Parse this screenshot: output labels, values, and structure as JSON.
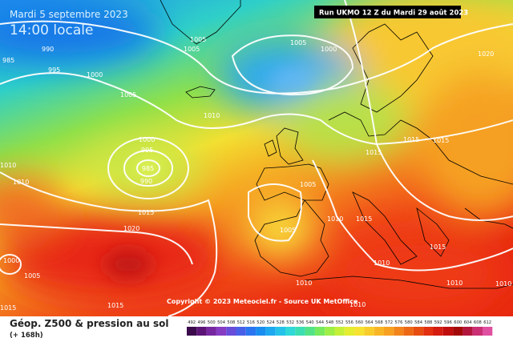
{
  "header": {
    "date": "Mardi 5 septembre 2023",
    "time": "14:00 locale",
    "run": "Run UKMO 12 Z du Mardi 29 août 2023"
  },
  "copyright": "Copyright © 2023 Meteociel.fr - Source UK MetOffice",
  "footer": {
    "title": "Géop. Z500 & pression au sol",
    "lead_time": "(+ 168h)"
  },
  "legend": {
    "ticks": [
      492,
      496,
      500,
      504,
      508,
      512,
      516,
      520,
      524,
      528,
      532,
      536,
      540,
      544,
      548,
      552,
      556,
      560,
      564,
      568,
      572,
      576,
      580,
      584,
      588,
      592,
      596,
      600,
      604,
      608,
      612
    ]
  },
  "isobar_labels": [
    990,
    985,
    995,
    1000,
    1005,
    1005,
    1005,
    1005,
    1000,
    1010,
    1000,
    995,
    985,
    990,
    1010,
    1010,
    1015,
    1020,
    1005,
    1005,
    1010,
    1015,
    1015,
    1015,
    1015,
    1015,
    1020,
    1010,
    1010,
    1010,
    1010,
    1015,
    1015,
    1000,
    1005,
    1010
  ]
}
